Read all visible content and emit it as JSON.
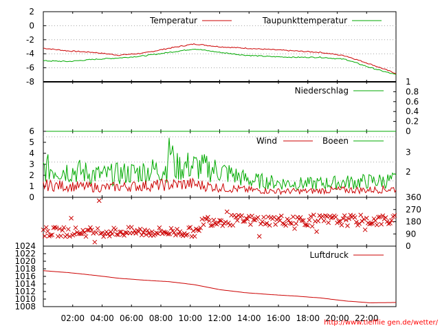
{
  "source_link": "http://www.tiefflie gen.de/wetter/",
  "colors": {
    "red": "#cc0000",
    "green": "#00aa00",
    "axis": "#000000",
    "grid": "#a0a0a0",
    "link": "#ff0000"
  },
  "chart_data": [
    {
      "type": "line",
      "id": "temperature",
      "ylim": [
        -8,
        2
      ],
      "yticks": [
        "2",
        "0",
        "-2",
        "-4",
        "-6",
        "-8"
      ],
      "x": [
        "00:00",
        "02:00",
        "04:00",
        "06:00",
        "08:00",
        "10:00",
        "10:30",
        "12:00",
        "14:00",
        "16:00",
        "18:00",
        "20:00",
        "22:00",
        "22:30",
        "23:59"
      ],
      "series": [
        {
          "name": "Temperatur",
          "color": "#cc0000",
          "values": [
            -3.2,
            -3.6,
            -3.8,
            -4.2,
            -3.9,
            -3.2,
            -2.6,
            -3.0,
            -3.2,
            -3.4,
            -3.6,
            -3.8,
            -4.3,
            -5.5,
            -6.8
          ]
        },
        {
          "name": "Taupunkttemperatur",
          "color": "#00aa00",
          "values": [
            -5.0,
            -5.1,
            -4.8,
            -4.6,
            -4.3,
            -3.8,
            -3.3,
            -3.8,
            -4.2,
            -4.4,
            -4.5,
            -4.5,
            -4.8,
            -6.0,
            -7.0
          ]
        }
      ]
    },
    {
      "type": "line",
      "id": "precipitation",
      "ylim": [
        0,
        1
      ],
      "yticks_right": [
        "1",
        "0.8",
        "0.6",
        "0.4",
        "0.2",
        "0"
      ],
      "series": [
        {
          "name": "Niederschlag",
          "color": "#00aa00",
          "values": [
            0,
            0
          ]
        }
      ]
    },
    {
      "type": "line",
      "id": "wind",
      "ylim": [
        0,
        6
      ],
      "yticks": [
        "6",
        "5",
        "4",
        "3",
        "2",
        "1",
        "0"
      ],
      "yticks_right": [
        "3",
        "2"
      ],
      "series": [
        {
          "name": "Wind",
          "color": "#cc0000",
          "values": [
            1.0,
            0.9,
            0.8,
            0.9,
            1.0,
            1.1,
            0.8,
            0.6,
            0.5,
            0.5,
            0.6,
            0.6,
            0.7
          ]
        },
        {
          "name": "Boeen",
          "color": "#00aa00",
          "values": [
            2.4,
            2.2,
            1.8,
            2.0,
            2.3,
            2.6,
            2.2,
            1.4,
            1.2,
            1.1,
            1.2,
            1.3,
            1.4
          ]
        }
      ]
    },
    {
      "type": "scatter",
      "id": "wind_direction",
      "ylim": [
        0,
        360
      ],
      "yticks_right": [
        "360",
        "270",
        "180",
        "90",
        "0"
      ],
      "marker": "x",
      "color": "#cc0000",
      "bands_deg": [
        [
          70,
          140
        ],
        [
          150,
          230
        ]
      ]
    },
    {
      "type": "line",
      "id": "pressure",
      "ylim": [
        1008,
        1024
      ],
      "yticks": [
        "1024",
        "1022",
        "1020",
        "1018",
        "1016",
        "1014",
        "1012",
        "1010",
        "1008"
      ],
      "series": [
        {
          "name": "Luftdruck",
          "color": "#cc0000",
          "values": [
            1017.5,
            1017.0,
            1016.3,
            1015.5,
            1015.0,
            1014.6,
            1013.8,
            1012.5,
            1011.7,
            1011.2,
            1010.8,
            1010.3,
            1009.5,
            1009.0,
            1009.1
          ]
        }
      ]
    }
  ],
  "xaxis": {
    "labels": [
      "02:00",
      "04:00",
      "06:00",
      "08:00",
      "10:00",
      "12:00",
      "14:00",
      "16:00",
      "18:00",
      "20:00",
      "22:00"
    ]
  }
}
